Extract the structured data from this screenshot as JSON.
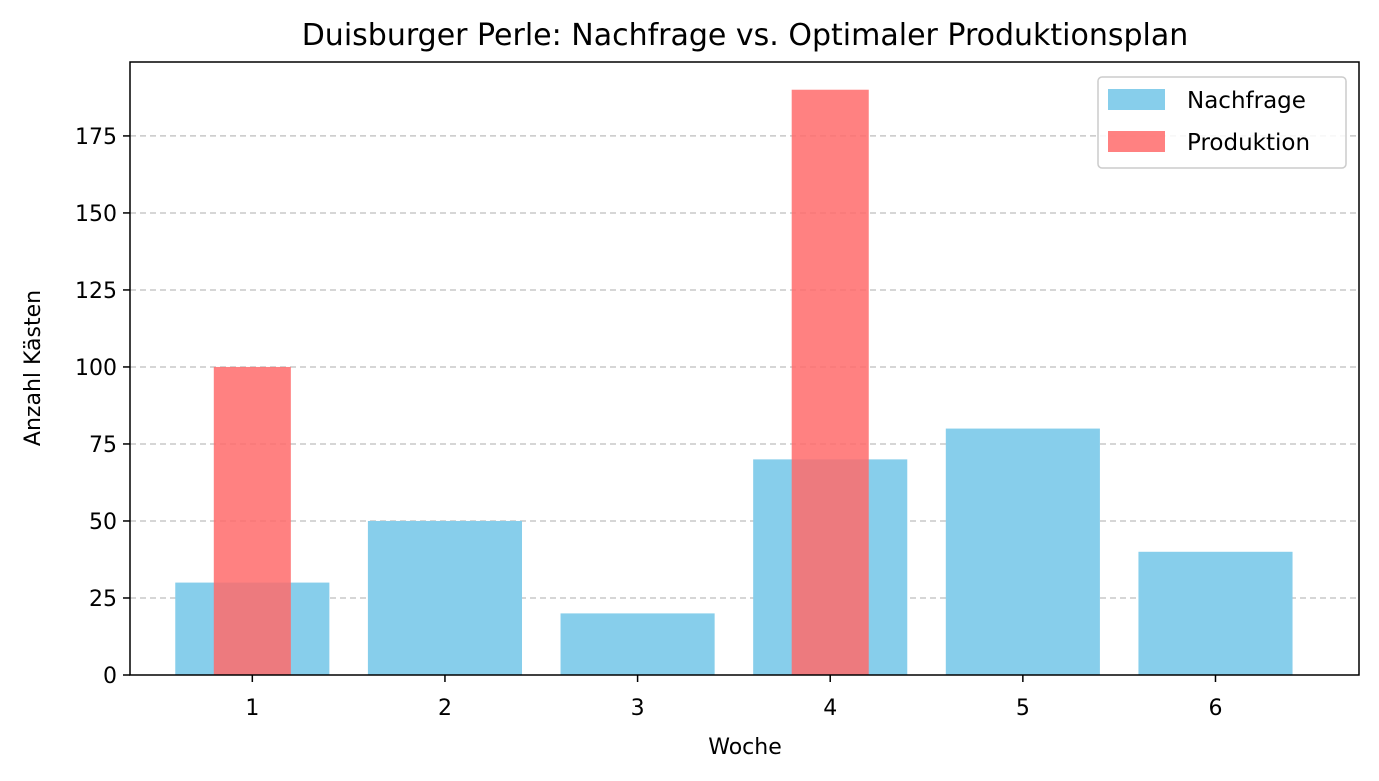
{
  "chart_data": {
    "type": "bar",
    "title": "Duisburger Perle: Nachfrage vs. Optimaler Produktionsplan",
    "xlabel": "Woche",
    "ylabel": "Anzahl Kästen",
    "categories": [
      "1",
      "2",
      "3",
      "4",
      "5",
      "6"
    ],
    "series": [
      {
        "name": "Nachfrage",
        "values": [
          30,
          50,
          20,
          70,
          80,
          40
        ],
        "color": "#87ceeb"
      },
      {
        "name": "Produktion",
        "values": [
          100,
          0,
          0,
          190,
          0,
          0
        ],
        "color": "#ff6b6b"
      }
    ],
    "ylim": [
      0,
      199
    ],
    "yticks": [
      0,
      25,
      50,
      75,
      100,
      125,
      150,
      175
    ],
    "grid": "y-dashed",
    "legend": "top-right"
  }
}
